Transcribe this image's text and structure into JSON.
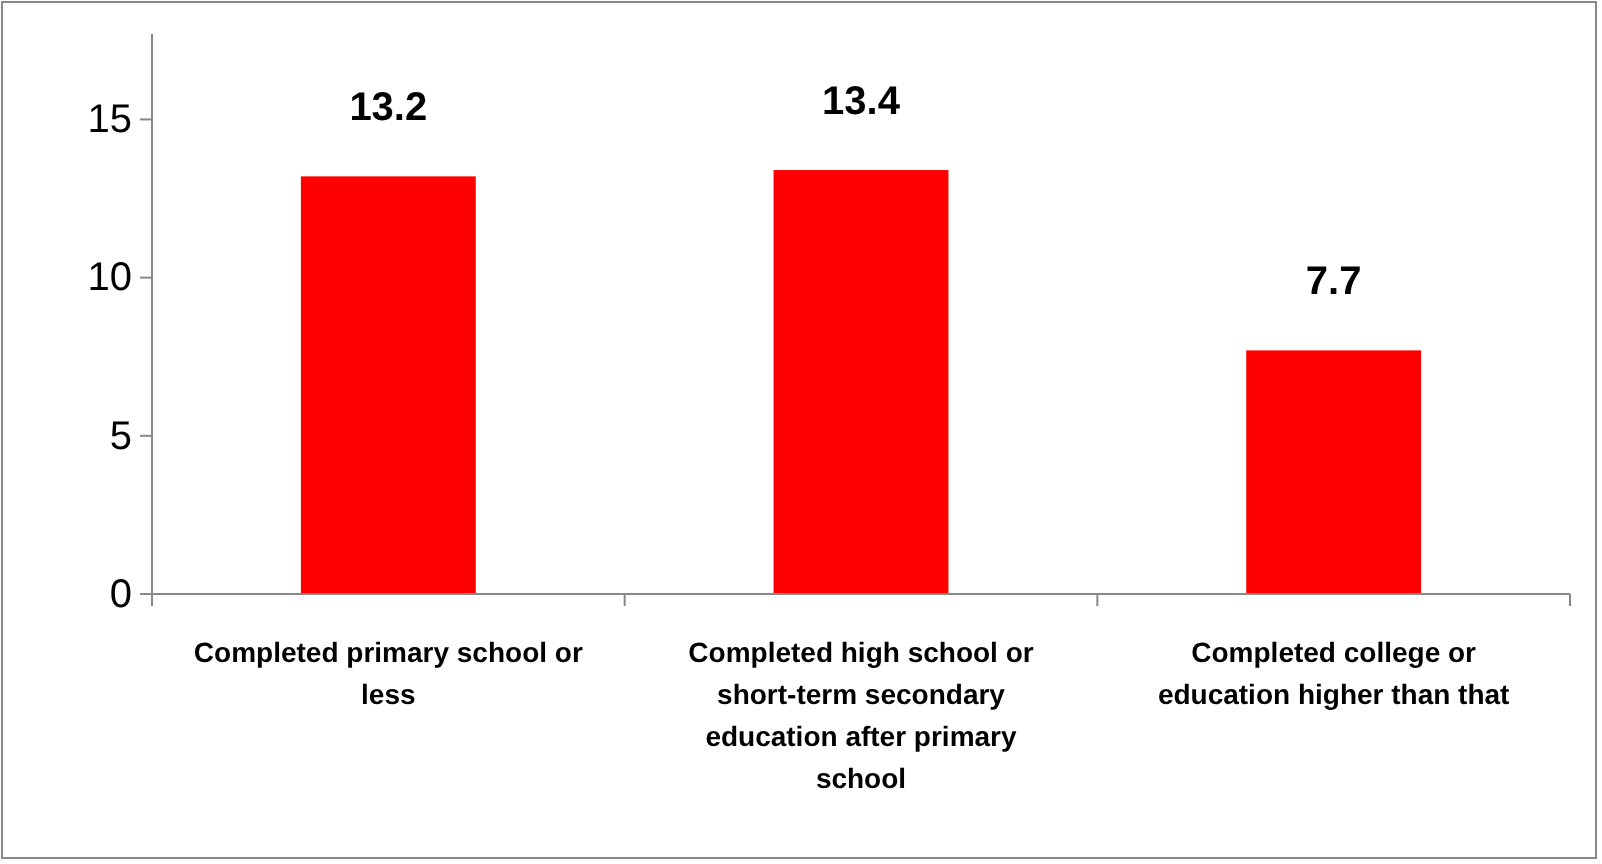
{
  "chart_data": {
    "type": "bar",
    "categories": [
      "Completed primary school or less",
      "Completed high school or short-term secondary education after primary school",
      "Completed college or education higher than that"
    ],
    "values": [
      13.2,
      13.4,
      7.7
    ],
    "color": "#ff0000",
    "ylim": [
      0,
      17.7
    ],
    "yticks": [
      0,
      5,
      10,
      15
    ],
    "grid": false,
    "data_labels": true
  }
}
